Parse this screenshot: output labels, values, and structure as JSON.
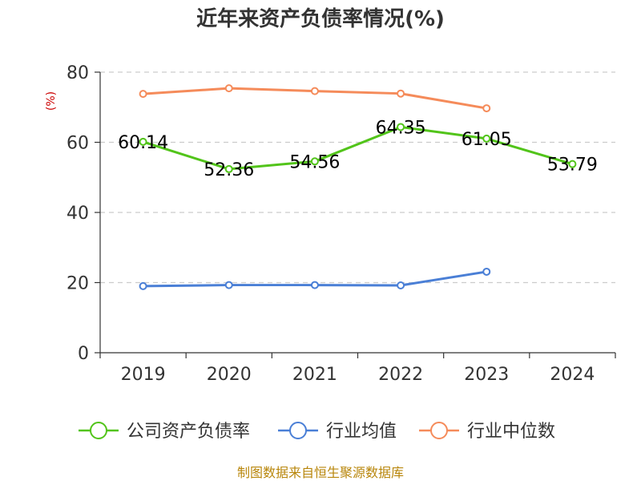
{
  "chart_data": {
    "type": "line",
    "title": "近年来资产负债率情况(%)",
    "ylabel": "(%)",
    "xlabel": "",
    "categories": [
      "2019",
      "2020",
      "2021",
      "2022",
      "2023",
      "2024"
    ],
    "ylim": [
      0,
      80
    ],
    "yticks": [
      0,
      20,
      40,
      60,
      80
    ],
    "grid": true,
    "legend_position": "bottom",
    "series": [
      {
        "name": "公司资产负债率",
        "color": "#52c41a",
        "values": [
          60.14,
          52.36,
          54.56,
          64.35,
          61.05,
          53.79
        ],
        "labels": [
          "60.14",
          "52.36",
          "54.56",
          "64.35",
          "61.05",
          "53.79"
        ]
      },
      {
        "name": "行业均值",
        "color": "#4a7fd6",
        "values": [
          19.0,
          19.3,
          19.3,
          19.2,
          23.1,
          null
        ]
      },
      {
        "name": "行业中位数",
        "color": "#f58b5a",
        "values": [
          73.8,
          75.4,
          74.6,
          73.9,
          69.7,
          null
        ]
      }
    ]
  },
  "source": "制图数据来自恒生聚源数据库"
}
